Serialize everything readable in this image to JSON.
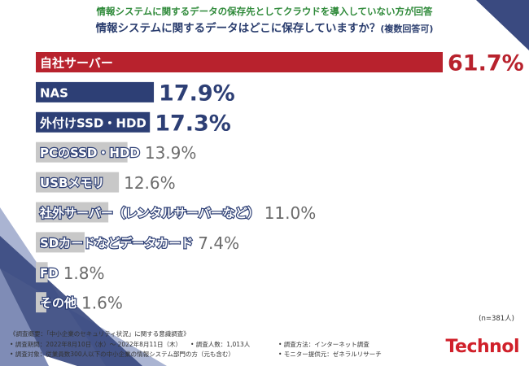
{
  "header": {
    "subtitle": "情報システムに関するデータの保存先としてクラウドを導入していない方が回答",
    "title": "情報システムに関するデータはどこに保存していますか？",
    "title_note": "(複数回答可)"
  },
  "chart_data": {
    "type": "bar",
    "orientation": "horizontal",
    "unit": "%",
    "categories": [
      "自社サーバー",
      "NAS",
      "外付けSSD・HDD",
      "PCのSSD・HDD",
      "USBメモリ",
      "社外サーバー（レンタルサーバーなど）",
      "SDカードなどデータカード",
      "FD",
      "その他"
    ],
    "values": [
      61.7,
      17.9,
      17.3,
      13.9,
      12.6,
      11.0,
      7.4,
      1.8,
      1.6
    ],
    "value_labels": [
      "61.7%",
      "17.9%",
      "17.3%",
      "13.9%",
      "12.6%",
      "11.0%",
      "7.4%",
      "1.8%",
      "1.6%"
    ],
    "xlim": [
      0,
      61.7
    ],
    "grid": false,
    "colors": {
      "top": "#b8222d",
      "highlight": "#2d3f75",
      "other": "#c8c8c8",
      "label_highlight": "#2d3f75",
      "label_other": "#6b6b6b"
    }
  },
  "n_note": "(n=381人)",
  "footer": {
    "survey_outline": "《調査概要：「中小企業のセキュリティ状況」に関する意識調査》",
    "period": "• 調査期間：2022年8月10日（水）～ 2022年8月11日（木）",
    "respondents": "• 調査人数：1,013人",
    "method": "• 調査方法：インターネット調査",
    "target": "• 調査対象：従業員数300人以下の中小企業の情報システム部門の方（元も含む）",
    "provider": "• モニター提供元：ゼネラルリサーチ"
  },
  "logo": "Technol"
}
